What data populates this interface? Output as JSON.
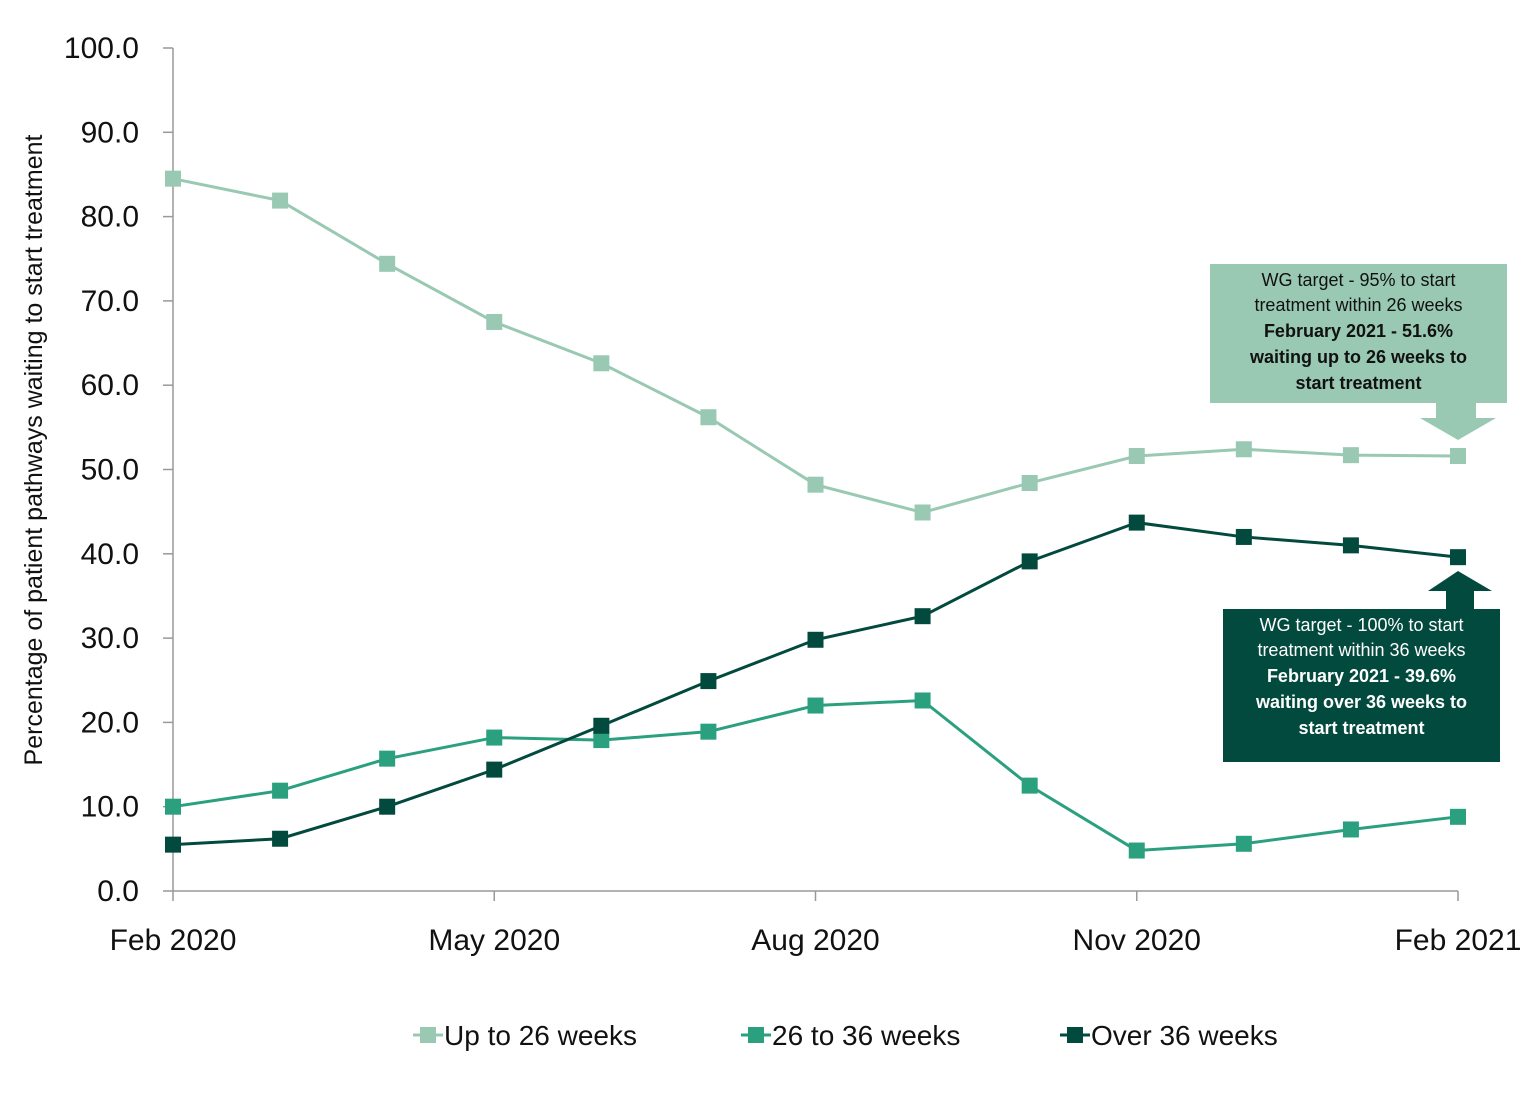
{
  "chart_data": {
    "type": "line",
    "ylabel": "Percentage of patient pathways waiting to start treatment",
    "ylim": [
      0,
      100
    ],
    "yticks": [
      "0.0",
      "10.0",
      "20.0",
      "30.0",
      "40.0",
      "50.0",
      "60.0",
      "70.0",
      "80.0",
      "90.0",
      "100.0"
    ],
    "x": [
      "Feb 2020",
      "Mar 2020",
      "Apr 2020",
      "May 2020",
      "Jun 2020",
      "Jul 2020",
      "Aug 2020",
      "Sep 2020",
      "Oct 2020",
      "Nov 2020",
      "Dec 2020",
      "Jan 2021",
      "Feb 2021"
    ],
    "xtick_labels": [
      "Feb 2020",
      "May 2020",
      "Aug 2020",
      "Nov 2020",
      "Feb 2021"
    ],
    "grid": false,
    "legend_position": "bottom",
    "series": [
      {
        "name": "Up to 26 weeks",
        "color": "#99c9b3",
        "values": [
          84.5,
          81.9,
          74.4,
          67.5,
          62.6,
          56.2,
          48.2,
          44.9,
          48.4,
          51.6,
          52.4,
          51.7,
          51.6
        ]
      },
      {
        "name": "26 to 36 weeks",
        "color": "#2aa07f",
        "values": [
          10.0,
          11.9,
          15.7,
          18.2,
          17.9,
          18.9,
          22.0,
          22.6,
          12.5,
          4.8,
          5.6,
          7.3,
          8.8
        ]
      },
      {
        "name": "Over 36 weeks",
        "color": "#034a3e",
        "values": [
          5.5,
          6.2,
          10.0,
          14.4,
          19.6,
          24.9,
          29.8,
          32.6,
          39.1,
          43.7,
          42.0,
          41.0,
          39.6
        ]
      }
    ],
    "annotations": [
      {
        "lines": [
          "WG target - 95% to start",
          "treatment within 26 weeks"
        ],
        "bold_lines": [
          "February 2021 - 51.6%",
          "waiting up to 26 weeks to",
          "start treatment"
        ],
        "background": "#99c9b3",
        "text_color": "#111111"
      },
      {
        "lines": [
          "WG target - 100% to start",
          "treatment within 36 weeks"
        ],
        "bold_lines": [
          "February 2021 - 39.6%",
          "waiting over 36 weeks to",
          "start treatment"
        ],
        "background": "#034a3e",
        "text_color": "#ffffff"
      }
    ]
  }
}
